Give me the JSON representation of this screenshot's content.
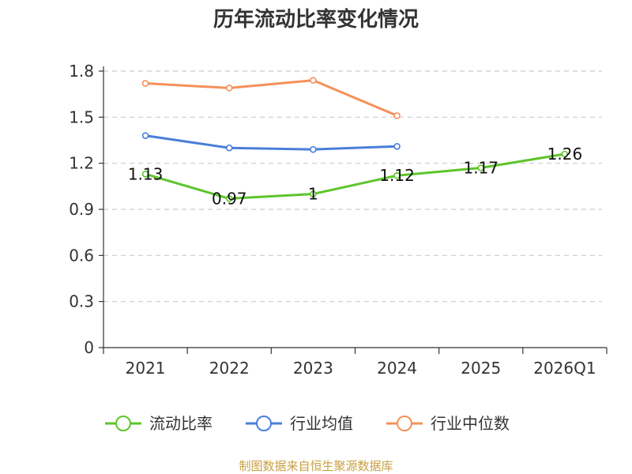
{
  "chart_data": {
    "type": "line",
    "title": "历年流动比率变化情况",
    "categories": [
      "2021",
      "2022",
      "2023",
      "2024",
      "2025",
      "2026Q1"
    ],
    "ylim": [
      0,
      1.8
    ],
    "yticks": [
      "0",
      "0.3",
      "0.6",
      "0.9",
      "1.2",
      "1.5",
      "1.8"
    ],
    "grid": true,
    "legend_position": "bottom",
    "series": [
      {
        "name": "流动比率",
        "color": "#5cc52b",
        "values": [
          1.13,
          0.97,
          1.0,
          1.12,
          1.17,
          1.26
        ],
        "labels": [
          "1.13",
          "0.97",
          "1",
          "1.12",
          "1.17",
          "1.26"
        ]
      },
      {
        "name": "行业均值",
        "color": "#4a7fd8",
        "values": [
          1.38,
          1.3,
          1.29,
          1.31,
          null,
          null
        ]
      },
      {
        "name": "行业中位数",
        "color": "#f5905a",
        "values": [
          1.72,
          1.69,
          1.74,
          1.51,
          null,
          null
        ]
      }
    ]
  },
  "source": "制图数据来自恒生聚源数据库"
}
